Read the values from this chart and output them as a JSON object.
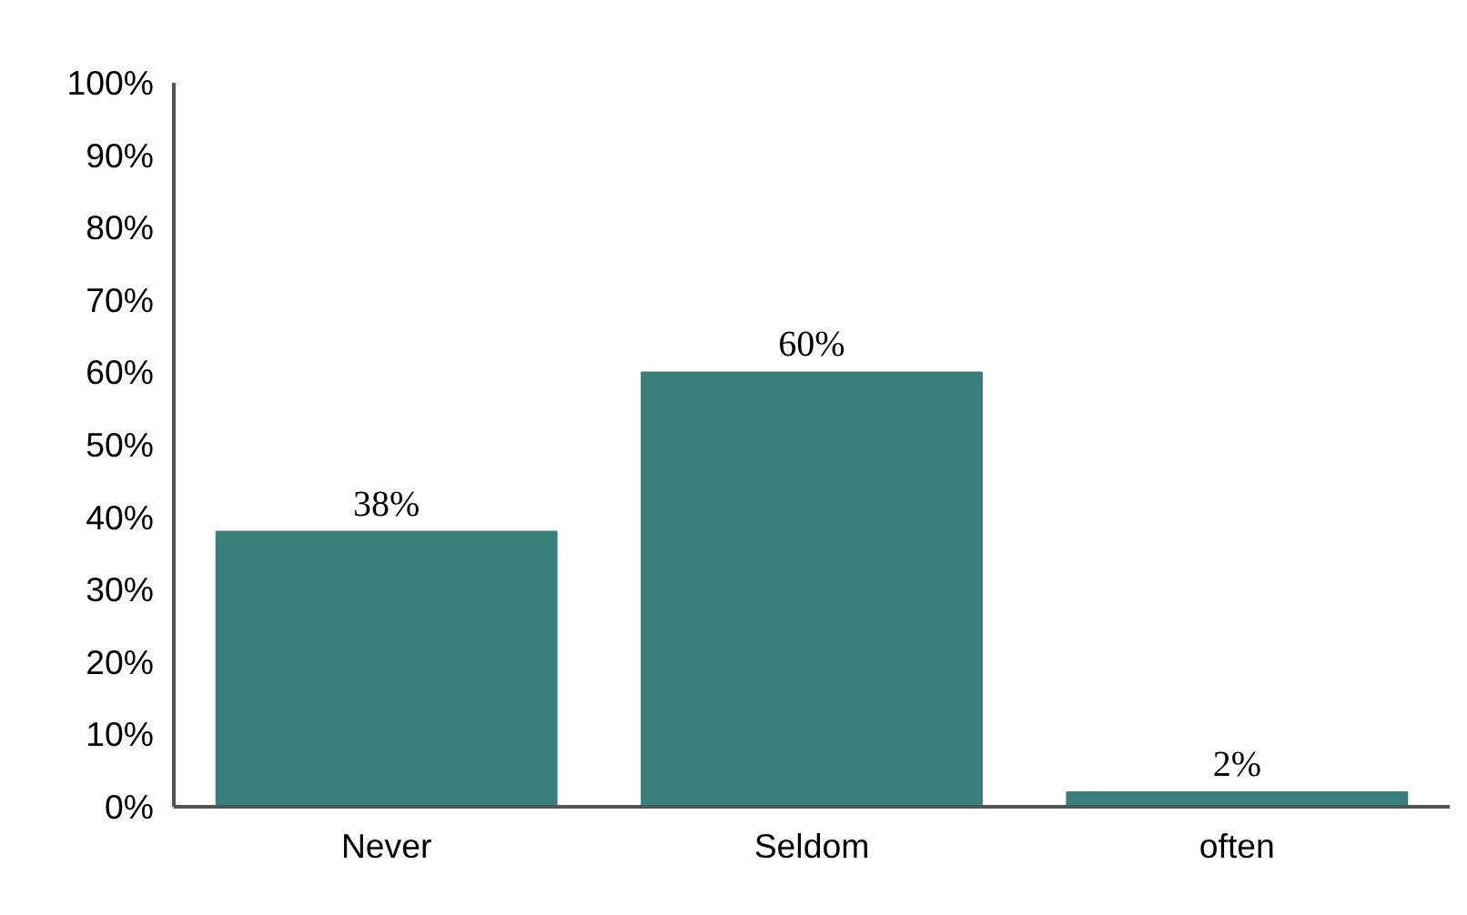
{
  "chart_data": {
    "type": "bar",
    "categories": [
      "Never",
      "Seldom",
      "often"
    ],
    "values": [
      38,
      60,
      2
    ],
    "color": "#3a7f7a",
    "value_labels": [
      "38%",
      "60%",
      "2%"
    ],
    "ylim": [
      0,
      100
    ],
    "yticks": [
      {
        "value": 0,
        "label": "0%"
      },
      {
        "value": 10,
        "label": "10%"
      },
      {
        "value": 20,
        "label": "20%"
      },
      {
        "value": 30,
        "label": "30%"
      },
      {
        "value": 40,
        "label": "40%"
      },
      {
        "value": 50,
        "label": "50%"
      },
      {
        "value": 60,
        "label": "60%"
      },
      {
        "value": 70,
        "label": "70%"
      },
      {
        "value": 80,
        "label": "80%"
      },
      {
        "value": 90,
        "label": "90%"
      },
      {
        "value": 100,
        "label": "100%"
      }
    ],
    "grid": false
  }
}
